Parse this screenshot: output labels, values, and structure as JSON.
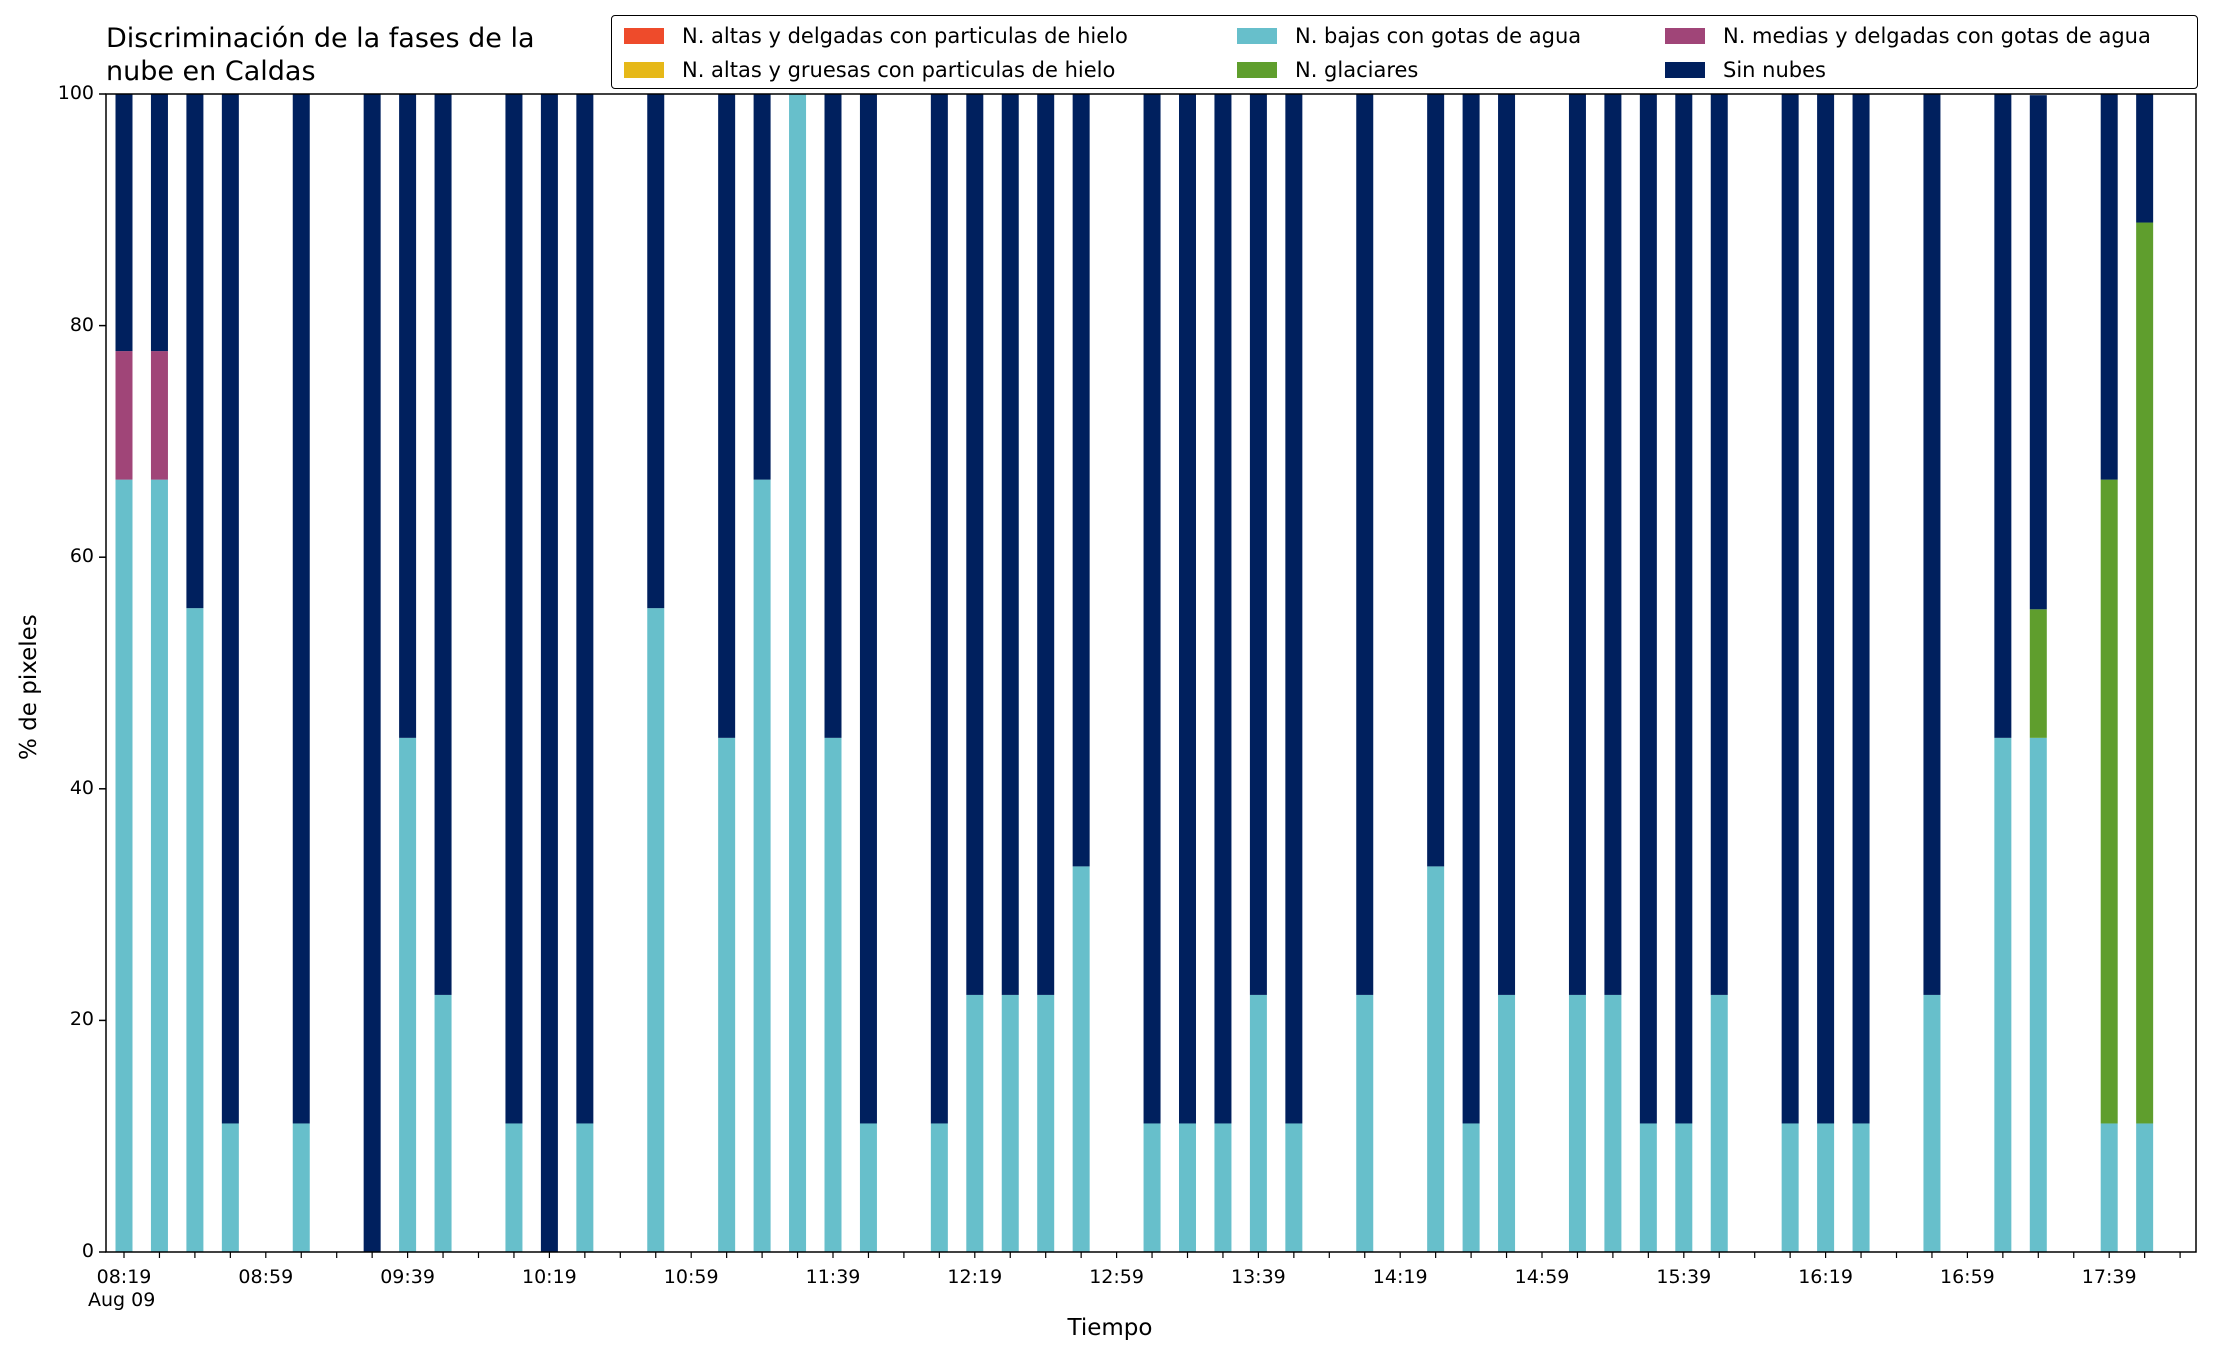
{
  "chart_data": {
    "type": "bar",
    "stacked": true,
    "title_lines": [
      "Discriminación de la fases de la",
      "nube en Caldas"
    ],
    "xlabel": "Tiempo",
    "ylabel": "% de pixeles",
    "ylim": [
      0,
      100
    ],
    "yticks": [
      0,
      20,
      40,
      60,
      80,
      100
    ],
    "xticks": [
      {
        "slot": 0,
        "label": "08:19"
      },
      {
        "slot": 4,
        "label": "08:59"
      },
      {
        "slot": 8,
        "label": "09:39"
      },
      {
        "slot": 12,
        "label": "10:19"
      },
      {
        "slot": 16,
        "label": "10:59"
      },
      {
        "slot": 20,
        "label": "11:39"
      },
      {
        "slot": 24,
        "label": "12:19"
      },
      {
        "slot": 28,
        "label": "12:59"
      },
      {
        "slot": 32,
        "label": "13:39"
      },
      {
        "slot": 36,
        "label": "14:19"
      },
      {
        "slot": 40,
        "label": "14:59"
      },
      {
        "slot": 44,
        "label": "15:39"
      },
      {
        "slot": 48,
        "label": "16:19"
      },
      {
        "slot": 52,
        "label": "16:59"
      },
      {
        "slot": 56,
        "label": "17:39"
      }
    ],
    "x_date_label": "Aug 09",
    "legend_position": "top-right",
    "series": [
      {
        "name": "N. altas y delgadas con particulas de hielo",
        "color": "#ee4b2b"
      },
      {
        "name": "N. altas y gruesas con particulas de hielo",
        "color": "#e6b818"
      },
      {
        "name": "N. bajas con gotas de agua",
        "color": "#67bfcb"
      },
      {
        "name": "N. glaciares",
        "color": "#5f9e2d"
      },
      {
        "name": "N. medias y delgadas con gotas de agua",
        "color": "#a04578"
      },
      {
        "name": "Sin nubes",
        "color": "#00205e"
      }
    ],
    "bars": [
      {
        "slot": 0,
        "bajas": 66.7,
        "glaciares": 0,
        "medias": 11.1,
        "sin_nubes": 22.2
      },
      {
        "slot": 1,
        "bajas": 66.7,
        "glaciares": 0,
        "medias": 11.1,
        "sin_nubes": 22.2
      },
      {
        "slot": 2,
        "bajas": 55.6,
        "glaciares": 0,
        "medias": 0,
        "sin_nubes": 44.4
      },
      {
        "slot": 3,
        "bajas": 11.1,
        "glaciares": 0,
        "medias": 0,
        "sin_nubes": 88.9
      },
      {
        "slot": 5,
        "bajas": 11.1,
        "glaciares": 0,
        "medias": 0,
        "sin_nubes": 88.9
      },
      {
        "slot": 7,
        "bajas": 0,
        "glaciares": 0,
        "medias": 0,
        "sin_nubes": 100
      },
      {
        "slot": 8,
        "bajas": 44.4,
        "glaciares": 0,
        "medias": 0,
        "sin_nubes": 55.6
      },
      {
        "slot": 9,
        "bajas": 22.2,
        "glaciares": 0,
        "medias": 0,
        "sin_nubes": 77.8
      },
      {
        "slot": 11,
        "bajas": 11.1,
        "glaciares": 0,
        "medias": 0,
        "sin_nubes": 88.9
      },
      {
        "slot": 12,
        "bajas": 0,
        "glaciares": 0,
        "medias": 0,
        "sin_nubes": 100
      },
      {
        "slot": 13,
        "bajas": 11.1,
        "glaciares": 0,
        "medias": 0,
        "sin_nubes": 88.9
      },
      {
        "slot": 15,
        "bajas": 55.6,
        "glaciares": 0,
        "medias": 0,
        "sin_nubes": 44.4
      },
      {
        "slot": 17,
        "bajas": 44.4,
        "glaciares": 0,
        "medias": 0,
        "sin_nubes": 55.6
      },
      {
        "slot": 18,
        "bajas": 66.7,
        "glaciares": 0,
        "medias": 0,
        "sin_nubes": 33.3
      },
      {
        "slot": 19,
        "bajas": 100,
        "glaciares": 0,
        "medias": 0,
        "sin_nubes": 0
      },
      {
        "slot": 20,
        "bajas": 44.4,
        "glaciares": 0,
        "medias": 0,
        "sin_nubes": 55.6
      },
      {
        "slot": 21,
        "bajas": 11.1,
        "glaciares": 0,
        "medias": 0,
        "sin_nubes": 88.9
      },
      {
        "slot": 23,
        "bajas": 11.1,
        "glaciares": 0,
        "medias": 0,
        "sin_nubes": 88.9
      },
      {
        "slot": 24,
        "bajas": 22.2,
        "glaciares": 0,
        "medias": 0,
        "sin_nubes": 77.8
      },
      {
        "slot": 25,
        "bajas": 22.2,
        "glaciares": 0,
        "medias": 0,
        "sin_nubes": 77.8
      },
      {
        "slot": 26,
        "bajas": 22.2,
        "glaciares": 0,
        "medias": 0,
        "sin_nubes": 77.8
      },
      {
        "slot": 27,
        "bajas": 33.3,
        "glaciares": 0,
        "medias": 0,
        "sin_nubes": 66.7
      },
      {
        "slot": 29,
        "bajas": 11.1,
        "glaciares": 0,
        "medias": 0,
        "sin_nubes": 88.9
      },
      {
        "slot": 30,
        "bajas": 11.1,
        "glaciares": 0,
        "medias": 0,
        "sin_nubes": 88.9
      },
      {
        "slot": 31,
        "bajas": 11.1,
        "glaciares": 0,
        "medias": 0,
        "sin_nubes": 88.9
      },
      {
        "slot": 32,
        "bajas": 22.2,
        "glaciares": 0,
        "medias": 0,
        "sin_nubes": 77.8
      },
      {
        "slot": 33,
        "bajas": 11.1,
        "glaciares": 0,
        "medias": 0,
        "sin_nubes": 88.9
      },
      {
        "slot": 35,
        "bajas": 22.2,
        "glaciares": 0,
        "medias": 0,
        "sin_nubes": 77.8
      },
      {
        "slot": 37,
        "bajas": 33.3,
        "glaciares": 0,
        "medias": 0,
        "sin_nubes": 66.7
      },
      {
        "slot": 38,
        "bajas": 11.1,
        "glaciares": 0,
        "medias": 0,
        "sin_nubes": 88.9
      },
      {
        "slot": 39,
        "bajas": 22.2,
        "glaciares": 0,
        "medias": 0,
        "sin_nubes": 77.8
      },
      {
        "slot": 41,
        "bajas": 22.2,
        "glaciares": 0,
        "medias": 0,
        "sin_nubes": 77.8
      },
      {
        "slot": 42,
        "bajas": 22.2,
        "glaciares": 0,
        "medias": 0,
        "sin_nubes": 77.8
      },
      {
        "slot": 43,
        "bajas": 11.1,
        "glaciares": 0,
        "medias": 0,
        "sin_nubes": 88.9
      },
      {
        "slot": 44,
        "bajas": 11.1,
        "glaciares": 0,
        "medias": 0,
        "sin_nubes": 88.9
      },
      {
        "slot": 45,
        "bajas": 22.2,
        "glaciares": 0,
        "medias": 0,
        "sin_nubes": 77.8
      },
      {
        "slot": 47,
        "bajas": 11.1,
        "glaciares": 0,
        "medias": 0,
        "sin_nubes": 88.9
      },
      {
        "slot": 48,
        "bajas": 11.1,
        "glaciares": 0,
        "medias": 0,
        "sin_nubes": 88.9
      },
      {
        "slot": 49,
        "bajas": 11.1,
        "glaciares": 0,
        "medias": 0,
        "sin_nubes": 88.9
      },
      {
        "slot": 51,
        "bajas": 22.2,
        "glaciares": 0,
        "medias": 0,
        "sin_nubes": 77.8
      },
      {
        "slot": 53,
        "bajas": 44.4,
        "glaciares": 0,
        "medias": 0,
        "sin_nubes": 55.6
      },
      {
        "slot": 54,
        "bajas": 44.4,
        "glaciares": 11.1,
        "medias": 0,
        "sin_nubes": 44.4
      },
      {
        "slot": 56,
        "bajas": 11.1,
        "glaciares": 55.6,
        "medias": 0,
        "sin_nubes": 33.3
      },
      {
        "slot": 57,
        "bajas": 11.1,
        "glaciares": 77.8,
        "medias": 0,
        "sin_nubes": 11.1
      }
    ]
  }
}
